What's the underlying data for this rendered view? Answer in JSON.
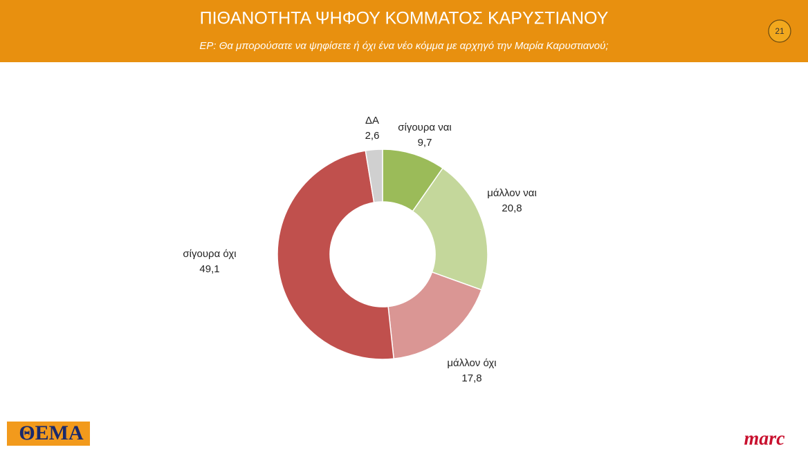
{
  "header": {
    "title": "ΠΙΘΑΝΟΤΗΤΑ ΨΗΦΟΥ ΚΟΜΜΑΤΟΣ ΚΑΡΥΣΤΙΑΝΟΥ",
    "subtitle": "ΕΡ: Θα μπορούσατε να ψηφίσετε ή όχι ένα νέο κόμμα με αρχηγό την Μαρία Καρυστιανού;",
    "page_number": "21"
  },
  "chart_data": {
    "type": "donut",
    "categories": [
      "σίγουρα ναι",
      "μάλλον ναι",
      "μάλλον όχι",
      "σίγουρα όχι",
      "ΔΑ"
    ],
    "values": [
      9.7,
      20.8,
      17.8,
      49.1,
      2.6
    ],
    "value_labels": [
      "9,7",
      "20,8",
      "17,8",
      "49,1",
      "2,6"
    ],
    "colors": [
      "#9bbb59",
      "#c4d79b",
      "#da9694",
      "#c0504d",
      "#d0d0d0"
    ]
  },
  "footer": {
    "left_logo": "ΘΕΜΑ",
    "right_logo": "marc"
  }
}
